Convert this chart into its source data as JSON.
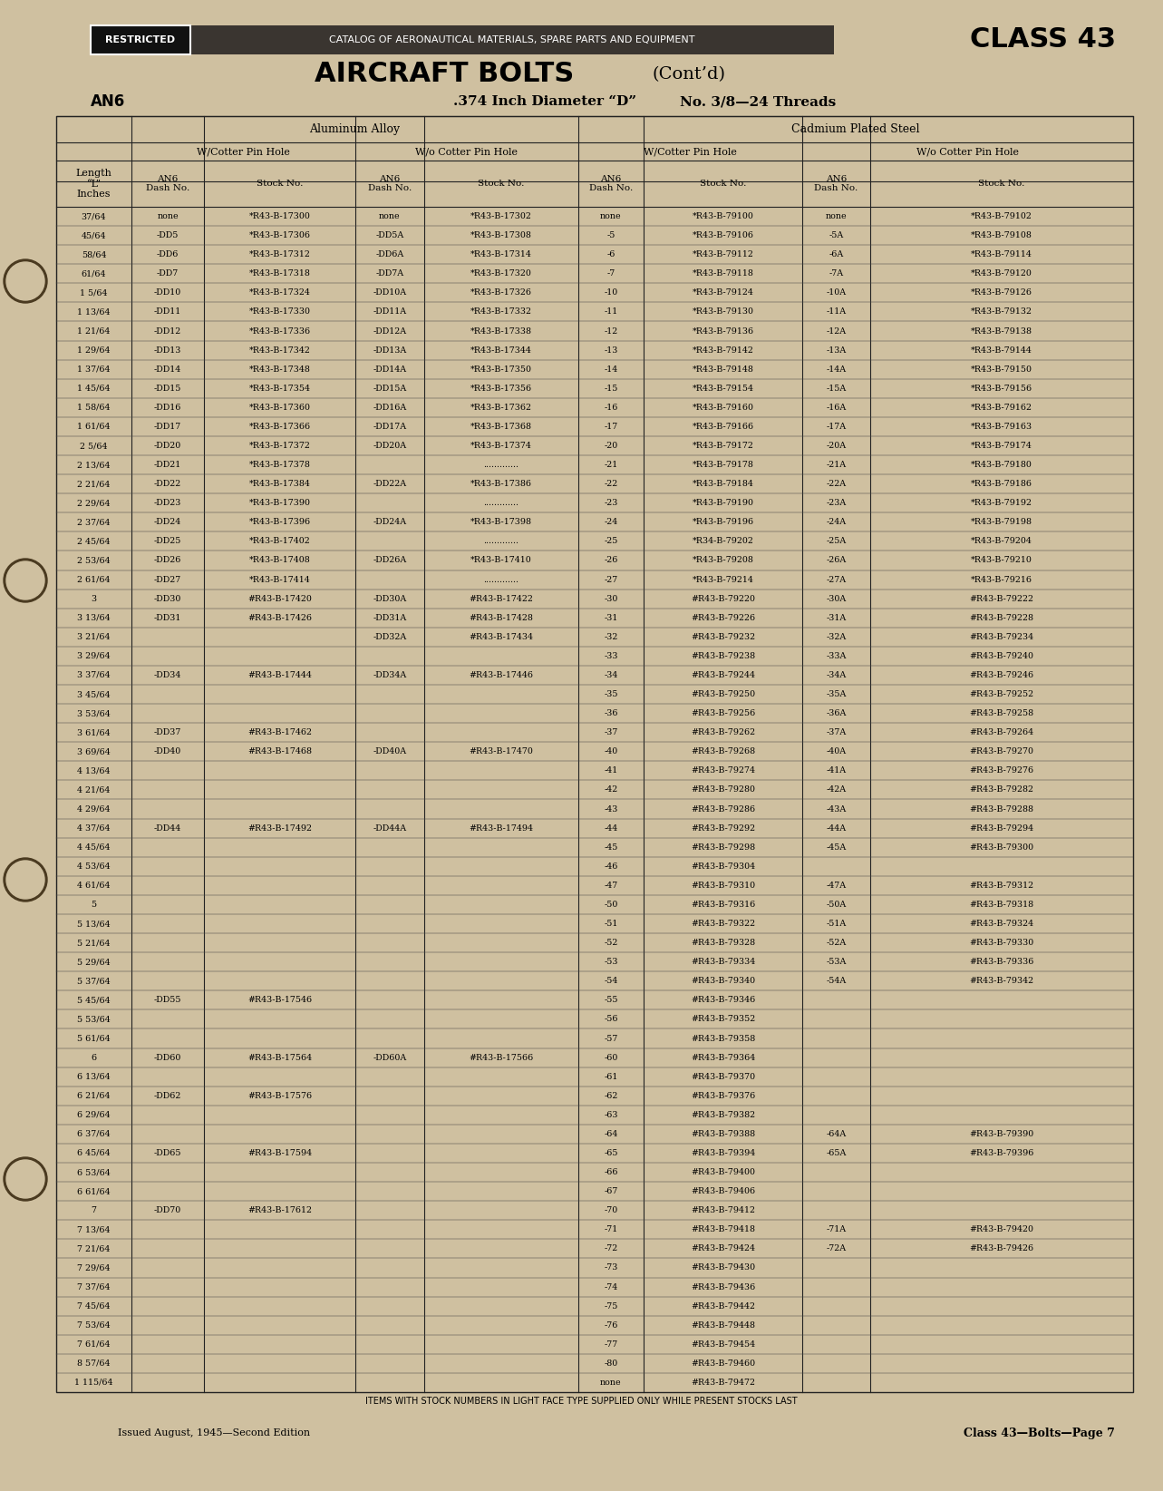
{
  "bg_color": "#cfc0a0",
  "page_title_main": "AIRCRAFT BOLTS",
  "page_title_cont": " (Cont’d)",
  "an6_label": "AN6",
  "spec_label": ".374 Inch Diameter “D”      No. 3/8—24 Threads",
  "header_top_left": "RESTRICTED",
  "header_banner": "CATALOG OF AERONAUTICAL MATERIALS, SPARE PARTS AND EQUIPMENT",
  "header_class": "CLASS 43",
  "footer_left": "Issued August, 1945—Second Edition",
  "footer_right": "Class 43—Bolts—Page 7",
  "footer_notice": "ITEMS WITH STOCK NUMBERS IN LIGHT FACE TYPE SUPPLIED ONLY WHILE PRESENT STOCKS LAST",
  "rows": [
    [
      "37/64",
      "none",
      "*R43-B-17300",
      "none",
      "*R43-B-17302",
      "none",
      "*R43-B-79100",
      "none",
      "*R43-B-79102"
    ],
    [
      "45/64",
      "-DD5",
      "*R43-B-17306",
      "-DD5A",
      "*R43-B-17308",
      "-5",
      "*R43-B-79106",
      "-5A",
      "*R43-B-79108"
    ],
    [
      "58/64",
      "-DD6",
      "*R43-B-17312",
      "-DD6A",
      "*R43-B-17314",
      "-6",
      "*R43-B-79112",
      "-6A",
      "*R43-B-79114"
    ],
    [
      "61/64",
      "-DD7",
      "*R43-B-17318",
      "-DD7A",
      "*R43-B-17320",
      "-7",
      "*R43-B-79118",
      "-7A",
      "*R43-B-79120"
    ],
    [
      "1 5/64",
      "-DD10",
      "*R43-B-17324",
      "-DD10A",
      "*R43-B-17326",
      "-10",
      "*R43-B-79124",
      "-10A",
      "*R43-B-79126"
    ],
    [
      "1 13/64",
      "-DD11",
      "*R43-B-17330",
      "-DD11A",
      "*R43-B-17332",
      "-11",
      "*R43-B-79130",
      "-11A",
      "*R43-B-79132"
    ],
    [
      "1 21/64",
      "-DD12",
      "*R43-B-17336",
      "-DD12A",
      "*R43-B-17338",
      "-12",
      "*R43-B-79136",
      "-12A",
      "*R43-B-79138"
    ],
    [
      "1 29/64",
      "-DD13",
      "*R43-B-17342",
      "-DD13A",
      "*R43-B-17344",
      "-13",
      "*R43-B-79142",
      "-13A",
      "*R43-B-79144"
    ],
    [
      "1 37/64",
      "-DD14",
      "*R43-B-17348",
      "-DD14A",
      "*R43-B-17350",
      "-14",
      "*R43-B-79148",
      "-14A",
      "*R43-B-79150"
    ],
    [
      "1 45/64",
      "-DD15",
      "*R43-B-17354",
      "-DD15A",
      "*R43-B-17356",
      "-15",
      "*R43-B-79154",
      "-15A",
      "*R43-B-79156"
    ],
    [
      "1 58/64",
      "-DD16",
      "*R43-B-17360",
      "-DD16A",
      "*R43-B-17362",
      "-16",
      "*R43-B-79160",
      "-16A",
      "*R43-B-79162"
    ],
    [
      "1 61/64",
      "-DD17",
      "*R43-B-17366",
      "-DD17A",
      "*R43-B-17368",
      "-17",
      "*R43-B-79166",
      "-17A",
      "*R43-B-79163"
    ],
    [
      "2 5/64",
      "-DD20",
      "*R43-B-17372",
      "-DD20A",
      "*R43-B-17374",
      "-20",
      "*R43-B-79172",
      "-20A",
      "*R43-B-79174"
    ],
    [
      "2 13/64",
      "-DD21",
      "*R43-B-17378",
      "",
      ".............",
      "-21",
      "*R43-B-79178",
      "-21A",
      "*R43-B-79180"
    ],
    [
      "2 21/64",
      "-DD22",
      "*R43-B-17384",
      "-DD22A",
      "*R43-B-17386",
      "-22",
      "*R43-B-79184",
      "-22A",
      "*R43-B-79186"
    ],
    [
      "2 29/64",
      "-DD23",
      "*R43-B-17390",
      "",
      ".............",
      "-23",
      "*R43-B-79190",
      "-23A",
      "*R43-B-79192"
    ],
    [
      "2 37/64",
      "-DD24",
      "*R43-B-17396",
      "-DD24A",
      "*R43-B-17398",
      "-24",
      "*R43-B-79196",
      "-24A",
      "*R43-B-79198"
    ],
    [
      "2 45/64",
      "-DD25",
      "*R43-B-17402",
      "",
      ".............",
      "-25",
      "*R34-B-79202",
      "-25A",
      "*R43-B-79204"
    ],
    [
      "2 53/64",
      "-DD26",
      "*R43-B-17408",
      "-DD26A",
      "*R43-B-17410",
      "-26",
      "*R43-B-79208",
      "-26A",
      "*R43-B-79210"
    ],
    [
      "2 61/64",
      "-DD27",
      "*R43-B-17414",
      "",
      ".............",
      "-27",
      "*R43-B-79214",
      "-27A",
      "*R43-B-79216"
    ],
    [
      "3",
      "-DD30",
      "#R43-B-17420",
      "-DD30A",
      "#R43-B-17422",
      "-30",
      "#R43-B-79220",
      "-30A",
      "#R43-B-79222"
    ],
    [
      "3 13/64",
      "-DD31",
      "#R43-B-17426",
      "-DD31A",
      "#R43-B-17428",
      "-31",
      "#R43-B-79226",
      "-31A",
      "#R43-B-79228"
    ],
    [
      "3 21/64",
      "",
      "",
      "-DD32A",
      "#R43-B-17434",
      "-32",
      "#R43-B-79232",
      "-32A",
      "#R43-B-79234"
    ],
    [
      "3 29/64",
      "",
      "",
      "",
      "",
      "-33",
      "#R43-B-79238",
      "-33A",
      "#R43-B-79240"
    ],
    [
      "3 37/64",
      "-DD34",
      "#R43-B-17444",
      "-DD34A",
      "#R43-B-17446",
      "-34",
      "#R43-B-79244",
      "-34A",
      "#R43-B-79246"
    ],
    [
      "3 45/64",
      "",
      "",
      "",
      "",
      "-35",
      "#R43-B-79250",
      "-35A",
      "#R43-B-79252"
    ],
    [
      "3 53/64",
      "",
      "",
      "",
      "",
      "-36",
      "#R43-B-79256",
      "-36A",
      "#R43-B-79258"
    ],
    [
      "3 61/64",
      "-DD37",
      "#R43-B-17462",
      "",
      "",
      "-37",
      "#R43-B-79262",
      "-37A",
      "#R43-B-79264"
    ],
    [
      "3 69/64",
      "-DD40",
      "#R43-B-17468",
      "-DD40A",
      "#R43-B-17470",
      "-40",
      "#R43-B-79268",
      "-40A",
      "#R43-B-79270"
    ],
    [
      "4 13/64",
      "",
      "",
      "",
      "",
      "-41",
      "#R43-B-79274",
      "-41A",
      "#R43-B-79276"
    ],
    [
      "4 21/64",
      "",
      "",
      "",
      "",
      "-42",
      "#R43-B-79280",
      "-42A",
      "#R43-B-79282"
    ],
    [
      "4 29/64",
      "",
      "",
      "",
      "",
      "-43",
      "#R43-B-79286",
      "-43A",
      "#R43-B-79288"
    ],
    [
      "4 37/64",
      "-DD44",
      "#R43-B-17492",
      "-DD44A",
      "#R43-B-17494",
      "-44",
      "#R43-B-79292",
      "-44A",
      "#R43-B-79294"
    ],
    [
      "4 45/64",
      "",
      "",
      "",
      "",
      "-45",
      "#R43-B-79298",
      "-45A",
      "#R43-B-79300"
    ],
    [
      "4 53/64",
      "",
      "",
      "",
      "",
      "-46",
      "#R43-B-79304",
      "",
      ""
    ],
    [
      "4 61/64",
      "",
      "",
      "",
      "",
      "-47",
      "#R43-B-79310",
      "-47A",
      "#R43-B-79312"
    ],
    [
      "5",
      "",
      "",
      "",
      "",
      "-50",
      "#R43-B-79316",
      "-50A",
      "#R43-B-79318"
    ],
    [
      "5 13/64",
      "",
      "",
      "",
      "",
      "-51",
      "#R43-B-79322",
      "-51A",
      "#R43-B-79324"
    ],
    [
      "5 21/64",
      "",
      "",
      "",
      "",
      "-52",
      "#R43-B-79328",
      "-52A",
      "#R43-B-79330"
    ],
    [
      "5 29/64",
      "",
      "",
      "",
      "",
      "-53",
      "#R43-B-79334",
      "-53A",
      "#R43-B-79336"
    ],
    [
      "5 37/64",
      "",
      "",
      "",
      "",
      "-54",
      "#R43-B-79340",
      "-54A",
      "#R43-B-79342"
    ],
    [
      "5 45/64",
      "-DD55",
      "#R43-B-17546",
      "",
      "",
      "-55",
      "#R43-B-79346",
      "",
      ""
    ],
    [
      "5 53/64",
      "",
      "",
      "",
      "",
      "-56",
      "#R43-B-79352",
      "",
      ""
    ],
    [
      "5 61/64",
      "",
      "",
      "",
      "",
      "-57",
      "#R43-B-79358",
      "",
      ""
    ],
    [
      "6",
      "-DD60",
      "#R43-B-17564",
      "-DD60A",
      "#R43-B-17566",
      "-60",
      "#R43-B-79364",
      "",
      ""
    ],
    [
      "6 13/64",
      "",
      "",
      "",
      "",
      "-61",
      "#R43-B-79370",
      "",
      ""
    ],
    [
      "6 21/64",
      "-DD62",
      "#R43-B-17576",
      "",
      "",
      "-62",
      "#R43-B-79376",
      "",
      ""
    ],
    [
      "6 29/64",
      "",
      "",
      "",
      "",
      "-63",
      "#R43-B-79382",
      "",
      ""
    ],
    [
      "6 37/64",
      "",
      "",
      "",
      "",
      "-64",
      "#R43-B-79388",
      "-64A",
      "#R43-B-79390"
    ],
    [
      "6 45/64",
      "-DD65",
      "#R43-B-17594",
      "",
      "",
      "-65",
      "#R43-B-79394",
      "-65A",
      "#R43-B-79396"
    ],
    [
      "6 53/64",
      "",
      "",
      "",
      "",
      "-66",
      "#R43-B-79400",
      "",
      ""
    ],
    [
      "6 61/64",
      "",
      "",
      "",
      "",
      "-67",
      "#R43-B-79406",
      "",
      ""
    ],
    [
      "7",
      "-DD70",
      "#R43-B-17612",
      "",
      "",
      "-70",
      "#R43-B-79412",
      "",
      ""
    ],
    [
      "7 13/64",
      "",
      "",
      "",
      "",
      "-71",
      "#R43-B-79418",
      "-71A",
      "#R43-B-79420"
    ],
    [
      "7 21/64",
      "",
      "",
      "",
      "",
      "-72",
      "#R43-B-79424",
      "-72A",
      "#R43-B-79426"
    ],
    [
      "7 29/64",
      "",
      "",
      "",
      "",
      "-73",
      "#R43-B-79430",
      "",
      ""
    ],
    [
      "7 37/64",
      "",
      "",
      "",
      "",
      "-74",
      "#R43-B-79436",
      "",
      ""
    ],
    [
      "7 45/64",
      "",
      "",
      "",
      "",
      "-75",
      "#R43-B-79442",
      "",
      ""
    ],
    [
      "7 53/64",
      "",
      "",
      "",
      "",
      "-76",
      "#R43-B-79448",
      "",
      ""
    ],
    [
      "7 61/64",
      "",
      "",
      "",
      "",
      "-77",
      "#R43-B-79454",
      "",
      ""
    ],
    [
      "8 57/64",
      "",
      "",
      "",
      "",
      "-80",
      "#R43-B-79460",
      "",
      ""
    ],
    [
      "1 115/64",
      "",
      "",
      "",
      "",
      "none",
      "#R43-B-79472",
      "",
      ""
    ]
  ]
}
